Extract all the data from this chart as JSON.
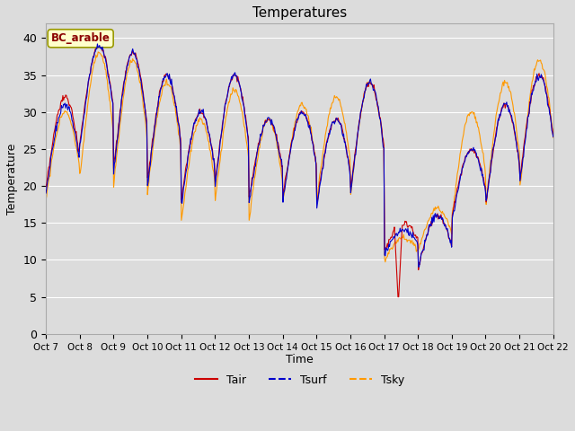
{
  "title": "Temperatures",
  "xlabel": "Time",
  "ylabel": "Temperature",
  "label_text": "BC_arable",
  "legend_labels": [
    "Tair",
    "Tsurf",
    "Tsky"
  ],
  "line_colors": [
    "#cc0000",
    "#0000cc",
    "#ff9900"
  ],
  "ylim": [
    0,
    42
  ],
  "yticks": [
    0,
    5,
    10,
    15,
    20,
    25,
    30,
    35,
    40
  ],
  "xtick_labels": [
    "Oct 7",
    "Oct 8",
    "Oct 9",
    "Oct 10",
    "Oct 11",
    "Oct 12",
    "Oct 13",
    "Oct 14",
    "Oct 15",
    "Oct 16",
    "Oct 17",
    "Oct 18",
    "Oct 19",
    "Oct 20",
    "Oct 21",
    "Oct 22"
  ],
  "bg_color": "#dcdcdc",
  "plot_bg_color": "#dcdcdc",
  "grid_color": "white",
  "figsize": [
    6.4,
    4.8
  ],
  "dpi": 100
}
